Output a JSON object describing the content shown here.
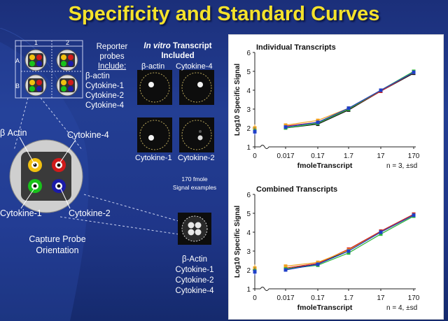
{
  "title": "Specificity and Standard Curves",
  "reporter": {
    "heading1": "Reporter",
    "heading2": "probes",
    "include": "Include:",
    "items": [
      "β-actin",
      "Cytokine-1",
      "Cytokine-2",
      "Cytokine-4"
    ],
    "array_cols": [
      "1",
      "2"
    ],
    "array_rows": [
      "A",
      "B"
    ]
  },
  "capture": {
    "labels": {
      "actin": "β Actin",
      "cyt4": "Cytokine-4",
      "cyt1": "Cytokine-1",
      "cyt2": "Cytokine-2"
    },
    "caption_line1": "Capture Probe",
    "caption_line2": "Orientation",
    "spot_colors": {
      "actin": "#f2c10f",
      "cyt4": "#d11a1a",
      "cyt1": "#18c21a",
      "cyt2": "#1b1ba8"
    }
  },
  "invitro": {
    "title_italic": "In vitro",
    "title_rest": "Transcript",
    "title2": "Included",
    "cells": [
      "β-actin",
      "Cytokine-4",
      "Cytokine-1",
      "Cytokine-2"
    ]
  },
  "signal": {
    "line1": "170 fmole",
    "line2": "Signal examples",
    "list": [
      "β-Actin",
      "Cytokine-1",
      "Cytokine-2",
      "Cytokine-4"
    ]
  },
  "charts": {
    "ytick_labels": [
      "1",
      "2",
      "3",
      "4",
      "5",
      "6"
    ],
    "xtick_labels": [
      "0",
      "0.017",
      "0.17",
      "1.7",
      "17",
      "170"
    ],
    "xlabel": "fmoleTranscript",
    "ylabel": "Log10 Specific Signal"
  },
  "chart_data": [
    {
      "type": "line",
      "title": "Individual Transcripts",
      "xlabel": "fmoleTranscript",
      "ylabel": "Log10 Specific Signal",
      "note": "n = 3, ±sd",
      "categories": [
        "0",
        "0.017",
        "0.17",
        "1.7",
        "17",
        "170"
      ],
      "ylim": [
        1,
        6
      ],
      "series": [
        {
          "color": "#111111",
          "values": [
            1.9,
            2.0,
            2.2,
            2.95,
            3.95,
            4.9
          ]
        },
        {
          "color": "#d62020",
          "values": [
            1.95,
            2.1,
            2.3,
            3.0,
            3.95,
            4.95
          ]
        },
        {
          "color": "#f0a020",
          "values": [
            2.0,
            2.15,
            2.4,
            3.05,
            4.0,
            4.95
          ]
        },
        {
          "color": "#2bb53a",
          "values": [
            1.85,
            2.0,
            2.25,
            3.0,
            4.0,
            5.0
          ]
        },
        {
          "color": "#1f3fc8",
          "values": [
            1.8,
            2.05,
            2.3,
            3.05,
            4.0,
            4.95
          ]
        }
      ]
    },
    {
      "type": "line",
      "title": "Combined Transcripts",
      "xlabel": "fmoleTranscript",
      "ylabel": "Log10 Specific Signal",
      "note": "n = 4, ±sd",
      "categories": [
        "0",
        "0.017",
        "0.17",
        "1.7",
        "17",
        "170"
      ],
      "ylim": [
        1,
        6
      ],
      "series": [
        {
          "color": "#111111",
          "values": [
            2.0,
            2.05,
            2.3,
            3.05,
            4.05,
            4.95
          ]
        },
        {
          "color": "#d62020",
          "values": [
            2.05,
            2.1,
            2.35,
            3.1,
            4.05,
            4.95
          ]
        },
        {
          "color": "#f0a020",
          "values": [
            2.1,
            2.2,
            2.4,
            3.05,
            4.0,
            4.9
          ]
        },
        {
          "color": "#2bb53a",
          "values": [
            1.95,
            2.05,
            2.25,
            2.9,
            3.9,
            4.85
          ]
        },
        {
          "color": "#1f3fc8",
          "values": [
            1.9,
            2.0,
            2.3,
            3.0,
            4.0,
            4.9
          ]
        }
      ]
    }
  ]
}
